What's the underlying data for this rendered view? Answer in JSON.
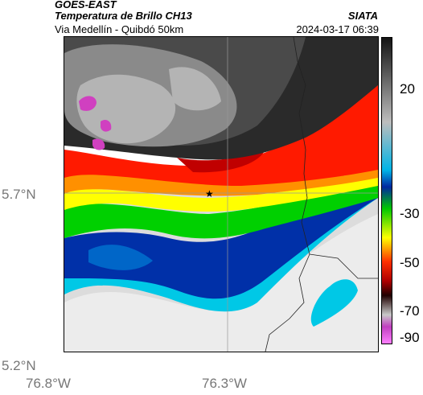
{
  "header": {
    "satellite": "GOES-EAST",
    "product": "Temperatura de Brillo CH13",
    "route": "Via Medellín - Quibdó 50km",
    "agency": "SIATA",
    "timestamp": "2024-03-17 06:39"
  },
  "axes": {
    "y_ticks": [
      "5.7°N",
      "5.2°N"
    ],
    "x_ticks": [
      "76.8°W",
      "76.3°W"
    ]
  },
  "colorbar": {
    "ticks": [
      "20",
      "-30",
      "-50",
      "-70",
      "-90"
    ],
    "stops": [
      {
        "value": 35,
        "color": "#141414"
      },
      {
        "value": 20,
        "color": "#5a5a5a"
      },
      {
        "value": 0,
        "color": "#bdbdbd"
      },
      {
        "value": -20,
        "color": "#00b4e6"
      },
      {
        "value": -27,
        "color": "#0028a0"
      },
      {
        "value": -36,
        "color": "#00c800"
      },
      {
        "value": -48,
        "color": "#ffff00"
      },
      {
        "value": -58,
        "color": "#ff3000"
      },
      {
        "value": -66,
        "color": "#b00000"
      },
      {
        "value": -72,
        "color": "#200000"
      },
      {
        "value": -80,
        "color": "#c8c8c8"
      },
      {
        "value": -85,
        "color": "#c040c0"
      },
      {
        "value": -92,
        "color": "#ff80ff"
      }
    ]
  },
  "map": {
    "marker": "star-icon",
    "colors": {
      "cold_dark": "#3a3a3a",
      "gray_cloud": "#8a8a8a",
      "light_cloud": "#c8c8c8",
      "magenta": "#d040c0",
      "red": "#ff1a00",
      "orange": "#ff9000",
      "yellow": "#ffff00",
      "green": "#00d000",
      "cyan": "#00c8e6",
      "blue": "#0030a8",
      "clear": "#e8e8e8"
    }
  }
}
